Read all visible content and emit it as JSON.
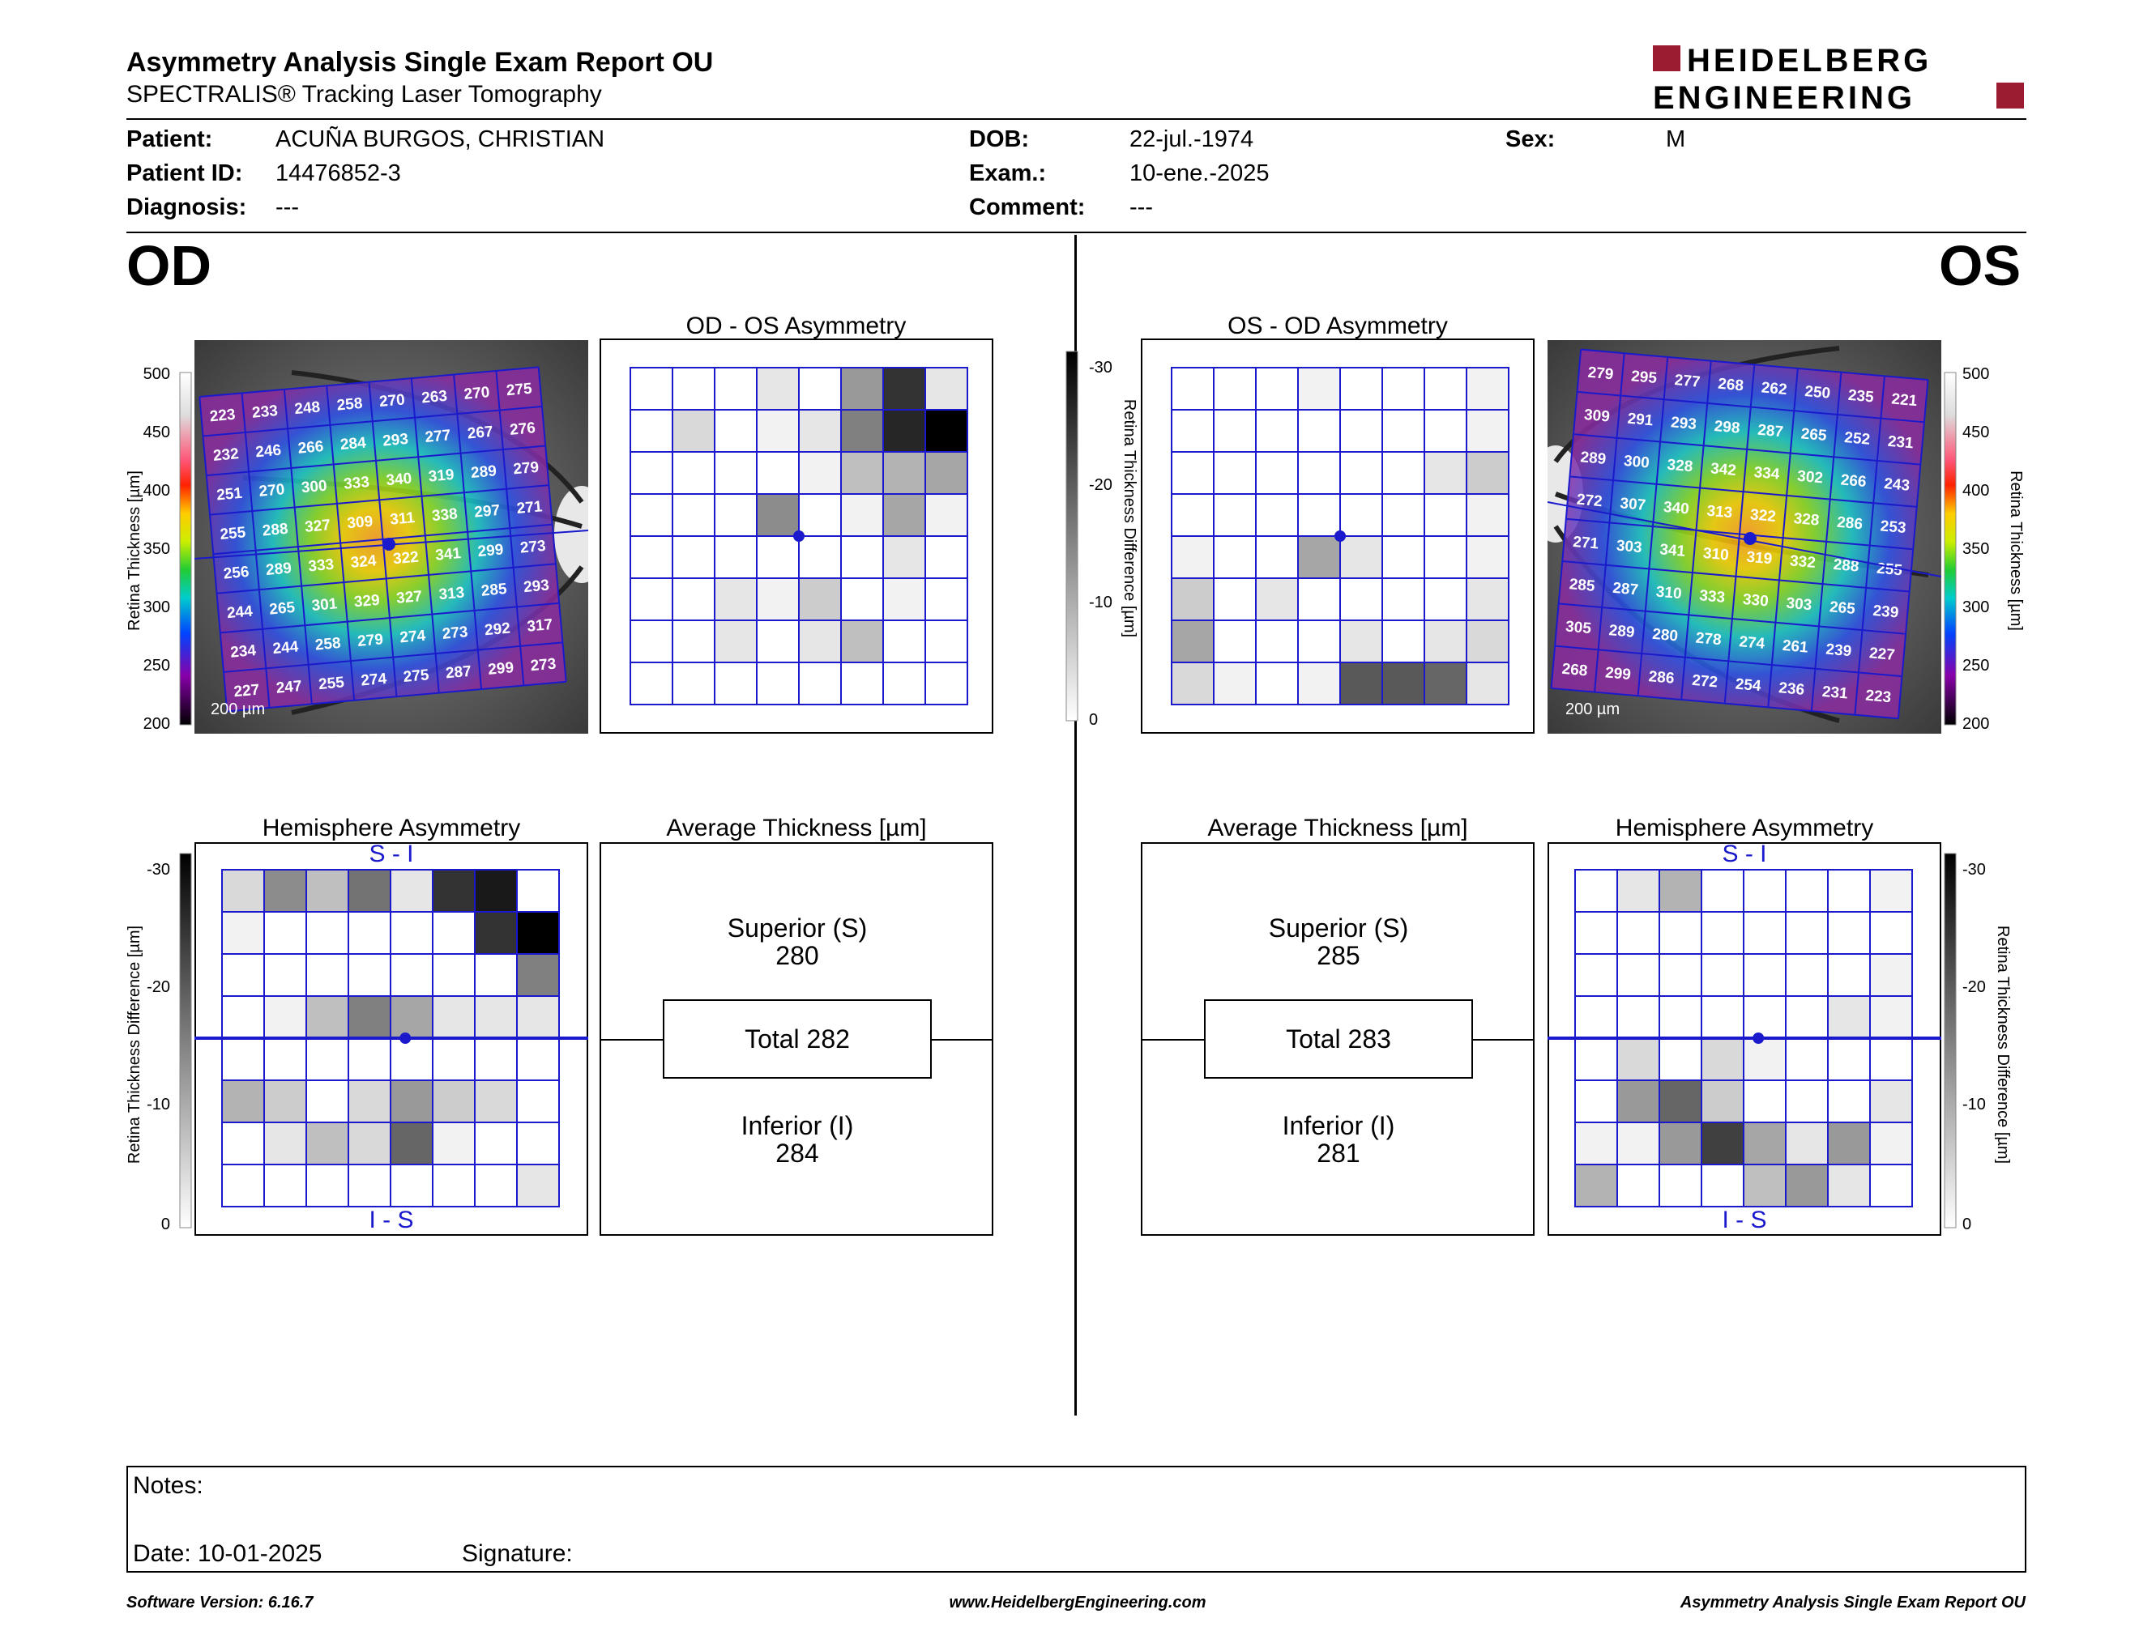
{
  "header": {
    "title": "Asymmetry Analysis Single Exam Report OU",
    "subtitle": "SPECTRALIS® Tracking Laser Tomography",
    "logo_line1": "HEIDELBERG",
    "logo_line2": "ENGINEERING",
    "brand_color": "#9b1b30"
  },
  "patient": {
    "patient_label": "Patient:",
    "patient_value": "ACUÑA BURGOS, CHRISTIAN",
    "id_label": "Patient ID:",
    "id_value": "14476852-3",
    "diag_label": "Diagnosis:",
    "diag_value": "---",
    "dob_label": "DOB:",
    "dob_value": "22-jul.-1974",
    "exam_label": "Exam.:",
    "exam_value": "10-ene.-2025",
    "comment_label": "Comment:",
    "comment_value": "---",
    "sex_label": "Sex:",
    "sex_value": "M"
  },
  "od": {
    "eye_label": "OD",
    "asym_title": "OD - OS Asymmetry",
    "hemi_title": "Hemisphere Asymmetry",
    "avg_title": "Average Thickness [µm]",
    "superior_label": "Superior (S)",
    "superior_value": "280",
    "total": "Total 282",
    "inferior_label": "Inferior (I)",
    "inferior_value": "284",
    "scale_label": "200 µm",
    "hemi_top": "S - I",
    "hemi_bottom": "I - S",
    "thickness": [
      [
        223,
        233,
        248,
        258,
        270,
        263,
        270,
        275
      ],
      [
        232,
        246,
        266,
        284,
        293,
        277,
        267,
        276
      ],
      [
        251,
        270,
        300,
        333,
        340,
        319,
        289,
        279
      ],
      [
        255,
        288,
        327,
        309,
        311,
        338,
        297,
        271
      ],
      [
        256,
        289,
        333,
        324,
        322,
        341,
        299,
        273
      ],
      [
        244,
        265,
        301,
        329,
        327,
        313,
        285,
        293
      ],
      [
        234,
        244,
        258,
        279,
        274,
        273,
        292,
        317
      ],
      [
        227,
        247,
        255,
        274,
        275,
        287,
        299,
        273
      ]
    ],
    "asym_gray": [
      [
        0,
        0,
        0,
        0.1,
        0,
        0.4,
        0.8,
        0.1
      ],
      [
        0,
        0.15,
        0,
        0.05,
        0.1,
        0.5,
        0.85,
        1.0
      ],
      [
        0,
        0,
        0,
        0,
        0.05,
        0.25,
        0.3,
        0.35
      ],
      [
        0,
        0,
        0,
        0.45,
        0,
        0.05,
        0.35,
        0.05
      ],
      [
        0,
        0,
        0,
        0,
        0,
        0,
        0.1,
        0
      ],
      [
        0,
        0,
        0.1,
        0.05,
        0.2,
        0,
        0.05,
        0
      ],
      [
        0,
        0,
        0.1,
        0,
        0.1,
        0.25,
        0,
        0
      ],
      [
        0,
        0,
        0,
        0,
        0,
        0,
        0,
        0
      ]
    ],
    "hemi_gray": [
      [
        0.15,
        0.45,
        0.25,
        0.55,
        0.1,
        0.8,
        0.9,
        0
      ],
      [
        0.05,
        0,
        0,
        0,
        0,
        0,
        0.8,
        1.0
      ],
      [
        0,
        0,
        0,
        0,
        0,
        0,
        0,
        0.5
      ],
      [
        0,
        0.05,
        0.25,
        0.5,
        0.35,
        0.1,
        0.1,
        0.1
      ],
      [
        0,
        0,
        0,
        0,
        0,
        0,
        0,
        0
      ],
      [
        0.3,
        0.2,
        0,
        0.15,
        0.4,
        0.2,
        0.15,
        0
      ],
      [
        0,
        0.1,
        0.25,
        0.15,
        0.6,
        0.05,
        0,
        0
      ],
      [
        0,
        0,
        0,
        0,
        0,
        0,
        0,
        0.1
      ]
    ]
  },
  "os": {
    "eye_label": "OS",
    "asym_title": "OS - OD Asymmetry",
    "hemi_title": "Hemisphere Asymmetry",
    "avg_title": "Average Thickness [µm]",
    "superior_label": "Superior (S)",
    "superior_value": "285",
    "total": "Total 283",
    "inferior_label": "Inferior (I)",
    "inferior_value": "281",
    "scale_label": "200 µm",
    "hemi_top": "S - I",
    "hemi_bottom": "I - S",
    "thickness": [
      [
        279,
        295,
        277,
        268,
        262,
        250,
        235,
        221
      ],
      [
        309,
        291,
        293,
        298,
        287,
        265,
        252,
        231
      ],
      [
        289,
        300,
        328,
        342,
        334,
        302,
        266,
        243
      ],
      [
        272,
        307,
        340,
        313,
        322,
        328,
        286,
        253
      ],
      [
        271,
        303,
        341,
        310,
        319,
        332,
        288,
        255
      ],
      [
        285,
        287,
        310,
        333,
        330,
        303,
        265,
        239
      ],
      [
        305,
        289,
        280,
        278,
        274,
        261,
        239,
        227
      ],
      [
        268,
        299,
        286,
        272,
        254,
        236,
        231,
        223
      ]
    ],
    "asym_gray": [
      [
        0,
        0,
        0,
        0.05,
        0,
        0,
        0,
        0.05
      ],
      [
        0,
        0,
        0,
        0,
        0,
        0,
        0,
        0.05
      ],
      [
        0,
        0,
        0,
        0,
        0,
        0,
        0.1,
        0.2
      ],
      [
        0,
        0,
        0,
        0,
        0,
        0,
        0,
        0.05
      ],
      [
        0.05,
        0,
        0,
        0.35,
        0.1,
        0,
        0,
        0.05
      ],
      [
        0.2,
        0,
        0.1,
        0,
        0,
        0,
        0,
        0.1
      ],
      [
        0.35,
        0,
        0,
        0,
        0.1,
        0,
        0.1,
        0.15
      ],
      [
        0.15,
        0.05,
        0,
        0.05,
        0.65,
        0.65,
        0.6,
        0.1
      ]
    ],
    "hemi_gray": [
      [
        0,
        0.1,
        0.3,
        0,
        0,
        0,
        0,
        0.05
      ],
      [
        0,
        0,
        0,
        0,
        0,
        0,
        0,
        0
      ],
      [
        0,
        0,
        0,
        0,
        0,
        0,
        0,
        0.05
      ],
      [
        0,
        0,
        0,
        0,
        0,
        0,
        0.1,
        0.05
      ],
      [
        0,
        0.15,
        0,
        0.15,
        0.05,
        0,
        0,
        0
      ],
      [
        0,
        0.4,
        0.6,
        0.2,
        0,
        0,
        0,
        0.1
      ],
      [
        0.05,
        0.05,
        0.4,
        0.75,
        0.35,
        0.1,
        0.4,
        0.05
      ],
      [
        0.3,
        0,
        0,
        0,
        0.25,
        0.4,
        0.1,
        0
      ]
    ]
  },
  "thickness_scale": {
    "label": "Retina Thickness [µm]",
    "ticks": [
      "500",
      "450",
      "400",
      "350",
      "300",
      "250",
      "200"
    ]
  },
  "diff_scale": {
    "label": "Retina Thickness Difference [µm]",
    "ticks": [
      "-30",
      "-20",
      "-10",
      "0"
    ]
  },
  "notes": {
    "notes_label": "Notes:",
    "date_label": "Date: 10-01-2025",
    "signature_label": "Signature:"
  },
  "footer": {
    "version": "Software Version: 6.16.7",
    "website": "www.HeidelbergEngineering.com",
    "report": "Asymmetry Analysis Single Exam Report OU"
  }
}
